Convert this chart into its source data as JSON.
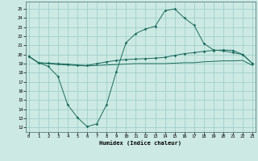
{
  "xlabel": "Humidex (Indice chaleur)",
  "bg_color": "#cce9e4",
  "grid_color": "#99ccc4",
  "line_color": "#1a6b5a",
  "x_ticks": [
    0,
    1,
    2,
    3,
    4,
    5,
    6,
    7,
    8,
    9,
    10,
    11,
    12,
    13,
    14,
    15,
    16,
    17,
    18,
    19,
    20,
    21,
    22,
    23
  ],
  "y_ticks": [
    12,
    13,
    14,
    15,
    16,
    17,
    18,
    19,
    20,
    21,
    22,
    23,
    24,
    25
  ],
  "ylim": [
    11.5,
    25.8
  ],
  "xlim": [
    -0.3,
    23.3
  ],
  "line1_x": [
    0,
    1,
    2,
    3,
    4,
    5,
    6,
    7,
    8,
    9,
    10,
    11,
    12,
    13,
    14,
    15,
    16,
    17,
    18,
    19,
    20,
    21,
    22,
    23
  ],
  "line1_y": [
    19.8,
    19.1,
    19.0,
    18.9,
    18.85,
    18.8,
    18.75,
    18.8,
    18.85,
    18.9,
    18.95,
    19.0,
    19.0,
    19.0,
    19.0,
    19.05,
    19.1,
    19.1,
    19.2,
    19.25,
    19.3,
    19.3,
    19.35,
    18.8
  ],
  "line2_x": [
    0,
    1,
    2,
    3,
    4,
    5,
    6,
    7,
    8,
    9,
    10,
    11,
    12,
    13,
    14,
    15,
    16,
    17,
    18,
    19,
    20,
    21,
    22,
    23
  ],
  "line2_y": [
    19.8,
    19.1,
    19.05,
    19.0,
    18.95,
    18.85,
    18.8,
    19.0,
    19.2,
    19.35,
    19.45,
    19.5,
    19.55,
    19.6,
    19.7,
    19.9,
    20.1,
    20.2,
    20.35,
    20.45,
    20.5,
    20.45,
    20.0,
    19.0
  ],
  "line3_x": [
    0,
    1,
    2,
    3,
    4,
    5,
    6,
    7,
    8,
    9,
    10,
    11,
    12,
    13,
    14,
    15,
    16,
    17,
    18,
    19,
    20,
    21,
    22,
    23
  ],
  "line3_y": [
    19.8,
    19.1,
    18.7,
    17.6,
    14.5,
    13.1,
    12.1,
    12.4,
    14.5,
    18.1,
    21.3,
    22.3,
    22.8,
    23.1,
    24.8,
    25.0,
    24.0,
    23.2,
    21.2,
    20.5,
    20.4,
    20.2,
    20.0,
    19.0
  ]
}
